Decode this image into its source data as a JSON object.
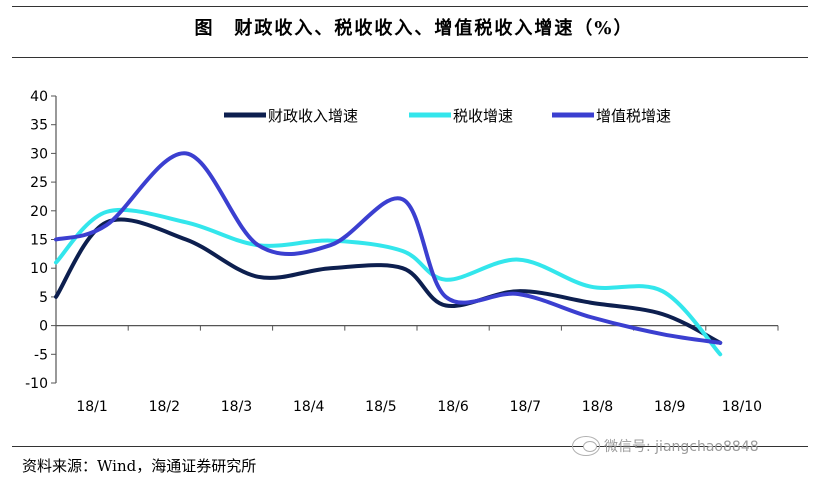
{
  "header": {
    "title": "图　财政收入、税收收入、增值税收入增速（%）"
  },
  "footer": {
    "source": "资料来源：Wind，海通证券研究所",
    "watermark": "微信号: jiangchao8848"
  },
  "chart_data": {
    "type": "line",
    "categories": [
      "18/1",
      "18/2",
      "18/3",
      "18/4",
      "18/5",
      "18/6",
      "18/7",
      "18/8",
      "18/9",
      "18/10"
    ],
    "ylim": [
      -10,
      40
    ],
    "yticks": [
      -10,
      -5,
      0,
      5,
      10,
      15,
      20,
      25,
      30,
      35,
      40
    ],
    "legend_position": "top",
    "grid": false,
    "series": [
      {
        "name": "财政收入增速",
        "color": "#0d1f4f",
        "x": [
          0,
          0.7,
          1.8,
          2.8,
          3.8,
          4.8,
          5.4,
          6.4,
          7.4,
          8.4,
          9.2
        ],
        "values": [
          5.0,
          18.0,
          15.0,
          8.5,
          10.0,
          10.0,
          3.5,
          6.0,
          4.0,
          2.0,
          -3.0
        ]
      },
      {
        "name": "税收增速",
        "color": "#33e6ec",
        "x": [
          0,
          0.7,
          1.8,
          2.8,
          3.8,
          4.8,
          5.4,
          6.4,
          7.4,
          8.4,
          9.2
        ],
        "values": [
          11.0,
          19.8,
          18.0,
          14.0,
          14.8,
          13.0,
          8.0,
          11.5,
          6.8,
          6.0,
          -5.0
        ]
      },
      {
        "name": "增值税增速",
        "color": "#3b3fd0",
        "x": [
          0,
          0.7,
          1.8,
          2.8,
          3.8,
          4.8,
          5.4,
          6.4,
          7.4,
          8.4,
          9.2
        ],
        "values": [
          15.0,
          17.5,
          30.0,
          14.0,
          14.0,
          22.0,
          5.0,
          5.5,
          1.5,
          -1.5,
          -3.0
        ]
      }
    ]
  }
}
